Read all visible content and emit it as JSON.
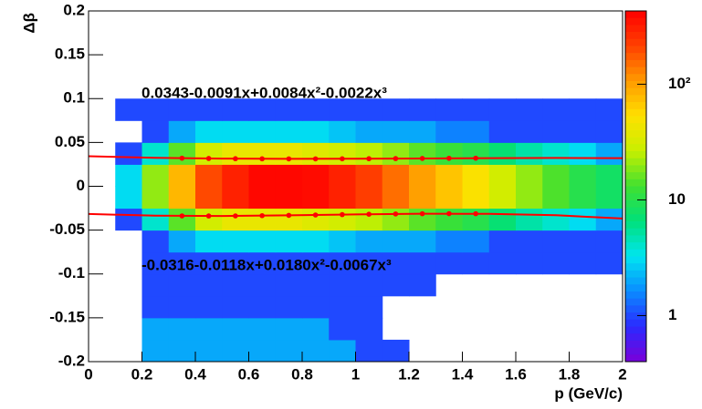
{
  "chart_data": {
    "type": "heatmap",
    "x_label": "p (GeV/c)",
    "y_label": "Δβ",
    "xlim": [
      0,
      2
    ],
    "ylim": [
      -0.2,
      0.2
    ],
    "xticks": [
      0,
      0.2,
      0.4,
      0.6,
      0.8,
      1,
      1.2,
      1.4,
      1.6,
      1.8,
      2
    ],
    "yticks": [
      -0.2,
      -0.15,
      -0.1,
      -0.05,
      0,
      0.05,
      0.1,
      0.15,
      0.2
    ],
    "zlim": [
      0.4,
      430
    ],
    "zscale": "log",
    "zticks": [
      1,
      10,
      {
        "value": 100,
        "label": "10²"
      }
    ],
    "colormap": [
      "#7a00d9",
      "#2a2aff",
      "#0a8cff",
      "#00e6f0",
      "#00e07a",
      "#40e030",
      "#c8f000",
      "#ffe000",
      "#ff9a00",
      "#ff4000",
      "#ff0000"
    ],
    "xbins": [
      0,
      0.1,
      0.2,
      0.3,
      0.4,
      0.5,
      0.6,
      0.7,
      0.8,
      0.9,
      1,
      1.1,
      1.2,
      1.3,
      1.4,
      1.5,
      1.6,
      1.7,
      1.8,
      1.9,
      2
    ],
    "ybins": [
      -0.2,
      -0.175,
      -0.15,
      -0.125,
      -0.1,
      -0.075,
      -0.05,
      -0.025,
      0,
      0.025,
      0.05,
      0.075,
      0.1
    ],
    "z": [
      [
        0,
        0,
        2,
        2,
        2,
        2,
        2,
        2,
        2,
        2,
        1,
        1,
        0,
        0,
        0,
        0,
        0,
        0,
        0,
        0
      ],
      [
        0,
        0,
        2,
        2,
        2,
        2,
        2,
        2,
        2,
        1,
        1,
        0,
        0,
        0,
        0,
        0,
        0,
        0,
        0,
        0
      ],
      [
        0,
        0,
        1,
        1,
        1,
        1,
        1,
        1,
        1,
        1,
        1,
        0,
        0,
        0,
        0,
        0,
        0,
        0,
        0,
        0
      ],
      [
        0,
        0,
        1,
        1,
        1,
        1,
        1,
        1,
        1,
        1,
        1,
        1,
        1,
        0,
        0,
        0,
        0,
        0,
        0,
        0
      ],
      [
        0,
        0,
        1,
        1,
        1,
        1,
        1,
        1,
        1,
        1,
        1,
        1,
        1,
        1,
        1,
        1,
        1,
        1,
        1,
        1
      ],
      [
        0,
        0,
        1,
        2,
        3,
        3,
        3,
        3,
        3,
        2.5,
        2,
        2,
        2,
        1.5,
        1.5,
        1,
        1,
        1,
        1,
        1
      ],
      [
        0,
        1,
        4,
        15,
        30,
        40,
        40,
        40,
        35,
        30,
        25,
        20,
        15,
        12,
        10,
        7,
        5,
        4,
        3,
        2
      ],
      [
        0,
        3,
        20,
        80,
        200,
        300,
        400,
        400,
        380,
        300,
        220,
        150,
        100,
        70,
        50,
        30,
        20,
        14,
        10,
        8
      ],
      [
        0,
        3,
        20,
        80,
        200,
        300,
        400,
        400,
        380,
        300,
        220,
        150,
        100,
        70,
        50,
        30,
        20,
        14,
        10,
        8
      ],
      [
        0,
        1,
        4,
        15,
        30,
        40,
        40,
        40,
        35,
        30,
        25,
        20,
        15,
        12,
        10,
        7,
        5,
        4,
        3,
        2
      ],
      [
        0,
        0,
        1,
        2,
        3,
        3,
        3,
        3,
        3,
        2.5,
        2,
        2,
        2,
        1.5,
        1.5,
        1,
        1,
        1,
        1,
        1
      ],
      [
        0,
        1,
        1,
        1,
        1,
        1,
        1,
        1,
        1,
        1,
        1,
        1,
        1,
        1,
        1,
        1,
        1,
        1,
        1,
        1
      ]
    ],
    "series": [
      {
        "color": "#ff0000",
        "x": [
          0,
          0.25,
          0.5,
          0.75,
          1,
          1.25,
          1.5,
          1.75,
          2
        ],
        "values": [
          0.0343,
          0.03252,
          0.03158,
          0.03127,
          0.0314,
          0.03175,
          0.03213,
          0.03231,
          0.0321
        ]
      },
      {
        "color": "#ff0000",
        "x": [
          0,
          0.25,
          0.5,
          0.75,
          1,
          1.25,
          1.5,
          1.75,
          2
        ],
        "values": [
          -0.0316,
          -0.03353,
          -0.03384,
          -0.03315,
          -0.0321,
          -0.03131,
          -0.03141,
          -0.03303,
          -0.0368
        ]
      },
      {
        "color": "#ff0000",
        "marker": true,
        "x": [
          0.35,
          0.45,
          0.55,
          0.65,
          0.75,
          0.85,
          0.95,
          1.05,
          1.15,
          1.25,
          1.35,
          1.45
        ],
        "values": [
          0.03205,
          0.03171,
          0.03147,
          0.03133,
          0.03127,
          0.03128,
          0.03135,
          0.03146,
          0.0316,
          0.03175,
          0.03191,
          0.03205
        ]
      },
      {
        "color": "#ff0000",
        "marker": true,
        "x": [
          0.35,
          0.45,
          0.55,
          0.65,
          0.75,
          0.85,
          0.95,
          1.05,
          1.15,
          1.25,
          1.35,
          1.45
        ],
        "values": [
          -0.03381,
          -0.03388,
          -0.03376,
          -0.0335,
          -0.03315,
          -0.03274,
          -0.03231,
          -0.0319,
          -0.03156,
          -0.03131,
          -0.03121,
          -0.03129
        ]
      }
    ],
    "annotations": [
      "0.0343-0.0091x+0.0084x²-0.0022x³",
      "-0.0316-0.0118x+0.0180x²-0.0067x³"
    ]
  }
}
